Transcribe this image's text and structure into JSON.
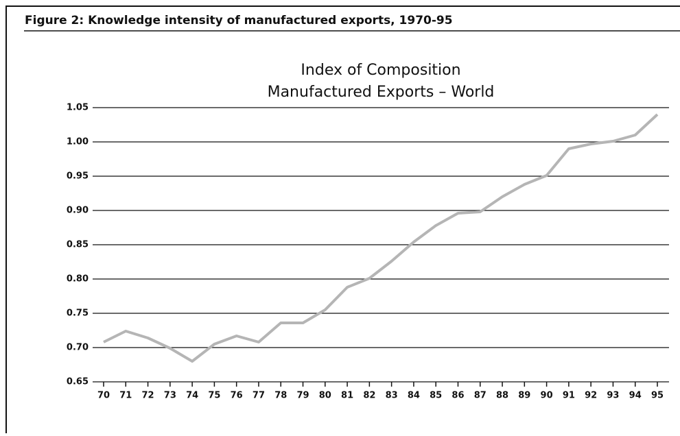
{
  "chart_data": {
    "type": "line",
    "caption": "Figure 2: Knowledge intensity of manufactured exports, 1970-95",
    "title": [
      "Index of Composition",
      "Manufactured Exports – World"
    ],
    "categories": [
      "70",
      "71",
      "72",
      "73",
      "74",
      "75",
      "76",
      "77",
      "78",
      "79",
      "80",
      "81",
      "82",
      "83",
      "84",
      "85",
      "86",
      "87",
      "88",
      "89",
      "90",
      "91",
      "92",
      "93",
      "94",
      "95"
    ],
    "series": [
      {
        "color": "#b5b5b5",
        "values": [
          0.708,
          0.724,
          0.714,
          0.699,
          0.68,
          0.705,
          0.717,
          0.708,
          0.736,
          0.736,
          0.755,
          0.788,
          0.801,
          0.826,
          0.854,
          0.878,
          0.896,
          0.898,
          0.92,
          0.938,
          0.951,
          0.99,
          0.997,
          1.001,
          1.01,
          1.04
        ]
      }
    ],
    "ylim": [
      0.65,
      1.05
    ],
    "yticks": [
      0.65,
      {
        "value": 0.7,
        "label": "0.70"
      },
      0.75,
      {
        "value": 0.8,
        "label": "0.80"
      },
      0.85,
      {
        "value": 0.9,
        "label": "0.90"
      },
      0.95,
      {
        "value": 1,
        "label": "1.00"
      },
      1.05
    ],
    "grid": true
  }
}
